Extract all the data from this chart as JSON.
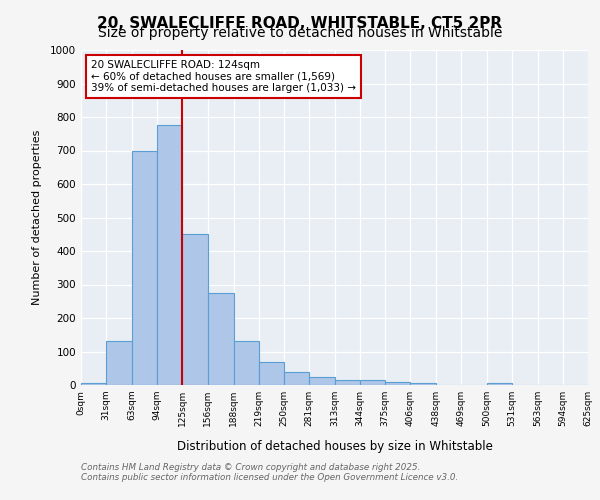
{
  "title_line1": "20, SWALECLIFFE ROAD, WHITSTABLE, CT5 2PR",
  "title_line2": "Size of property relative to detached houses in Whitstable",
  "xlabel": "Distribution of detached houses by size in Whitstable",
  "ylabel": "Number of detached properties",
  "bin_edges": [
    0,
    31,
    63,
    94,
    125,
    156,
    188,
    219,
    250,
    281,
    313,
    344,
    375,
    406,
    438,
    469,
    500,
    531,
    563,
    594,
    625
  ],
  "bar_heights": [
    5,
    130,
    700,
    775,
    450,
    275,
    130,
    70,
    40,
    25,
    15,
    15,
    10,
    5,
    0,
    0,
    5,
    0,
    0,
    0
  ],
  "bar_color": "#aec6e8",
  "bar_edgecolor": "#5a9fd4",
  "property_size": 124,
  "vline_color": "#cc0000",
  "ylim": [
    0,
    1000
  ],
  "annotation_text": "20 SWALECLIFFE ROAD: 124sqm\n← 60% of detached houses are smaller (1,569)\n39% of semi-detached houses are larger (1,033) →",
  "annotation_box_color": "#ffffff",
  "annotation_box_edgecolor": "#cc0000",
  "footnote1": "Contains HM Land Registry data © Crown copyright and database right 2025.",
  "footnote2": "Contains public sector information licensed under the Open Government Licence v3.0.",
  "background_color": "#e8eef4",
  "grid_color": "#ffffff",
  "title_fontsize": 11,
  "subtitle_fontsize": 10,
  "tick_labels": [
    "0sqm",
    "31sqm",
    "63sqm",
    "94sqm",
    "125sqm",
    "156sqm",
    "188sqm",
    "219sqm",
    "250sqm",
    "281sqm",
    "313sqm",
    "344sqm",
    "375sqm",
    "406sqm",
    "438sqm",
    "469sqm",
    "500sqm",
    "531sqm",
    "563sqm",
    "594sqm",
    "625sqm"
  ]
}
